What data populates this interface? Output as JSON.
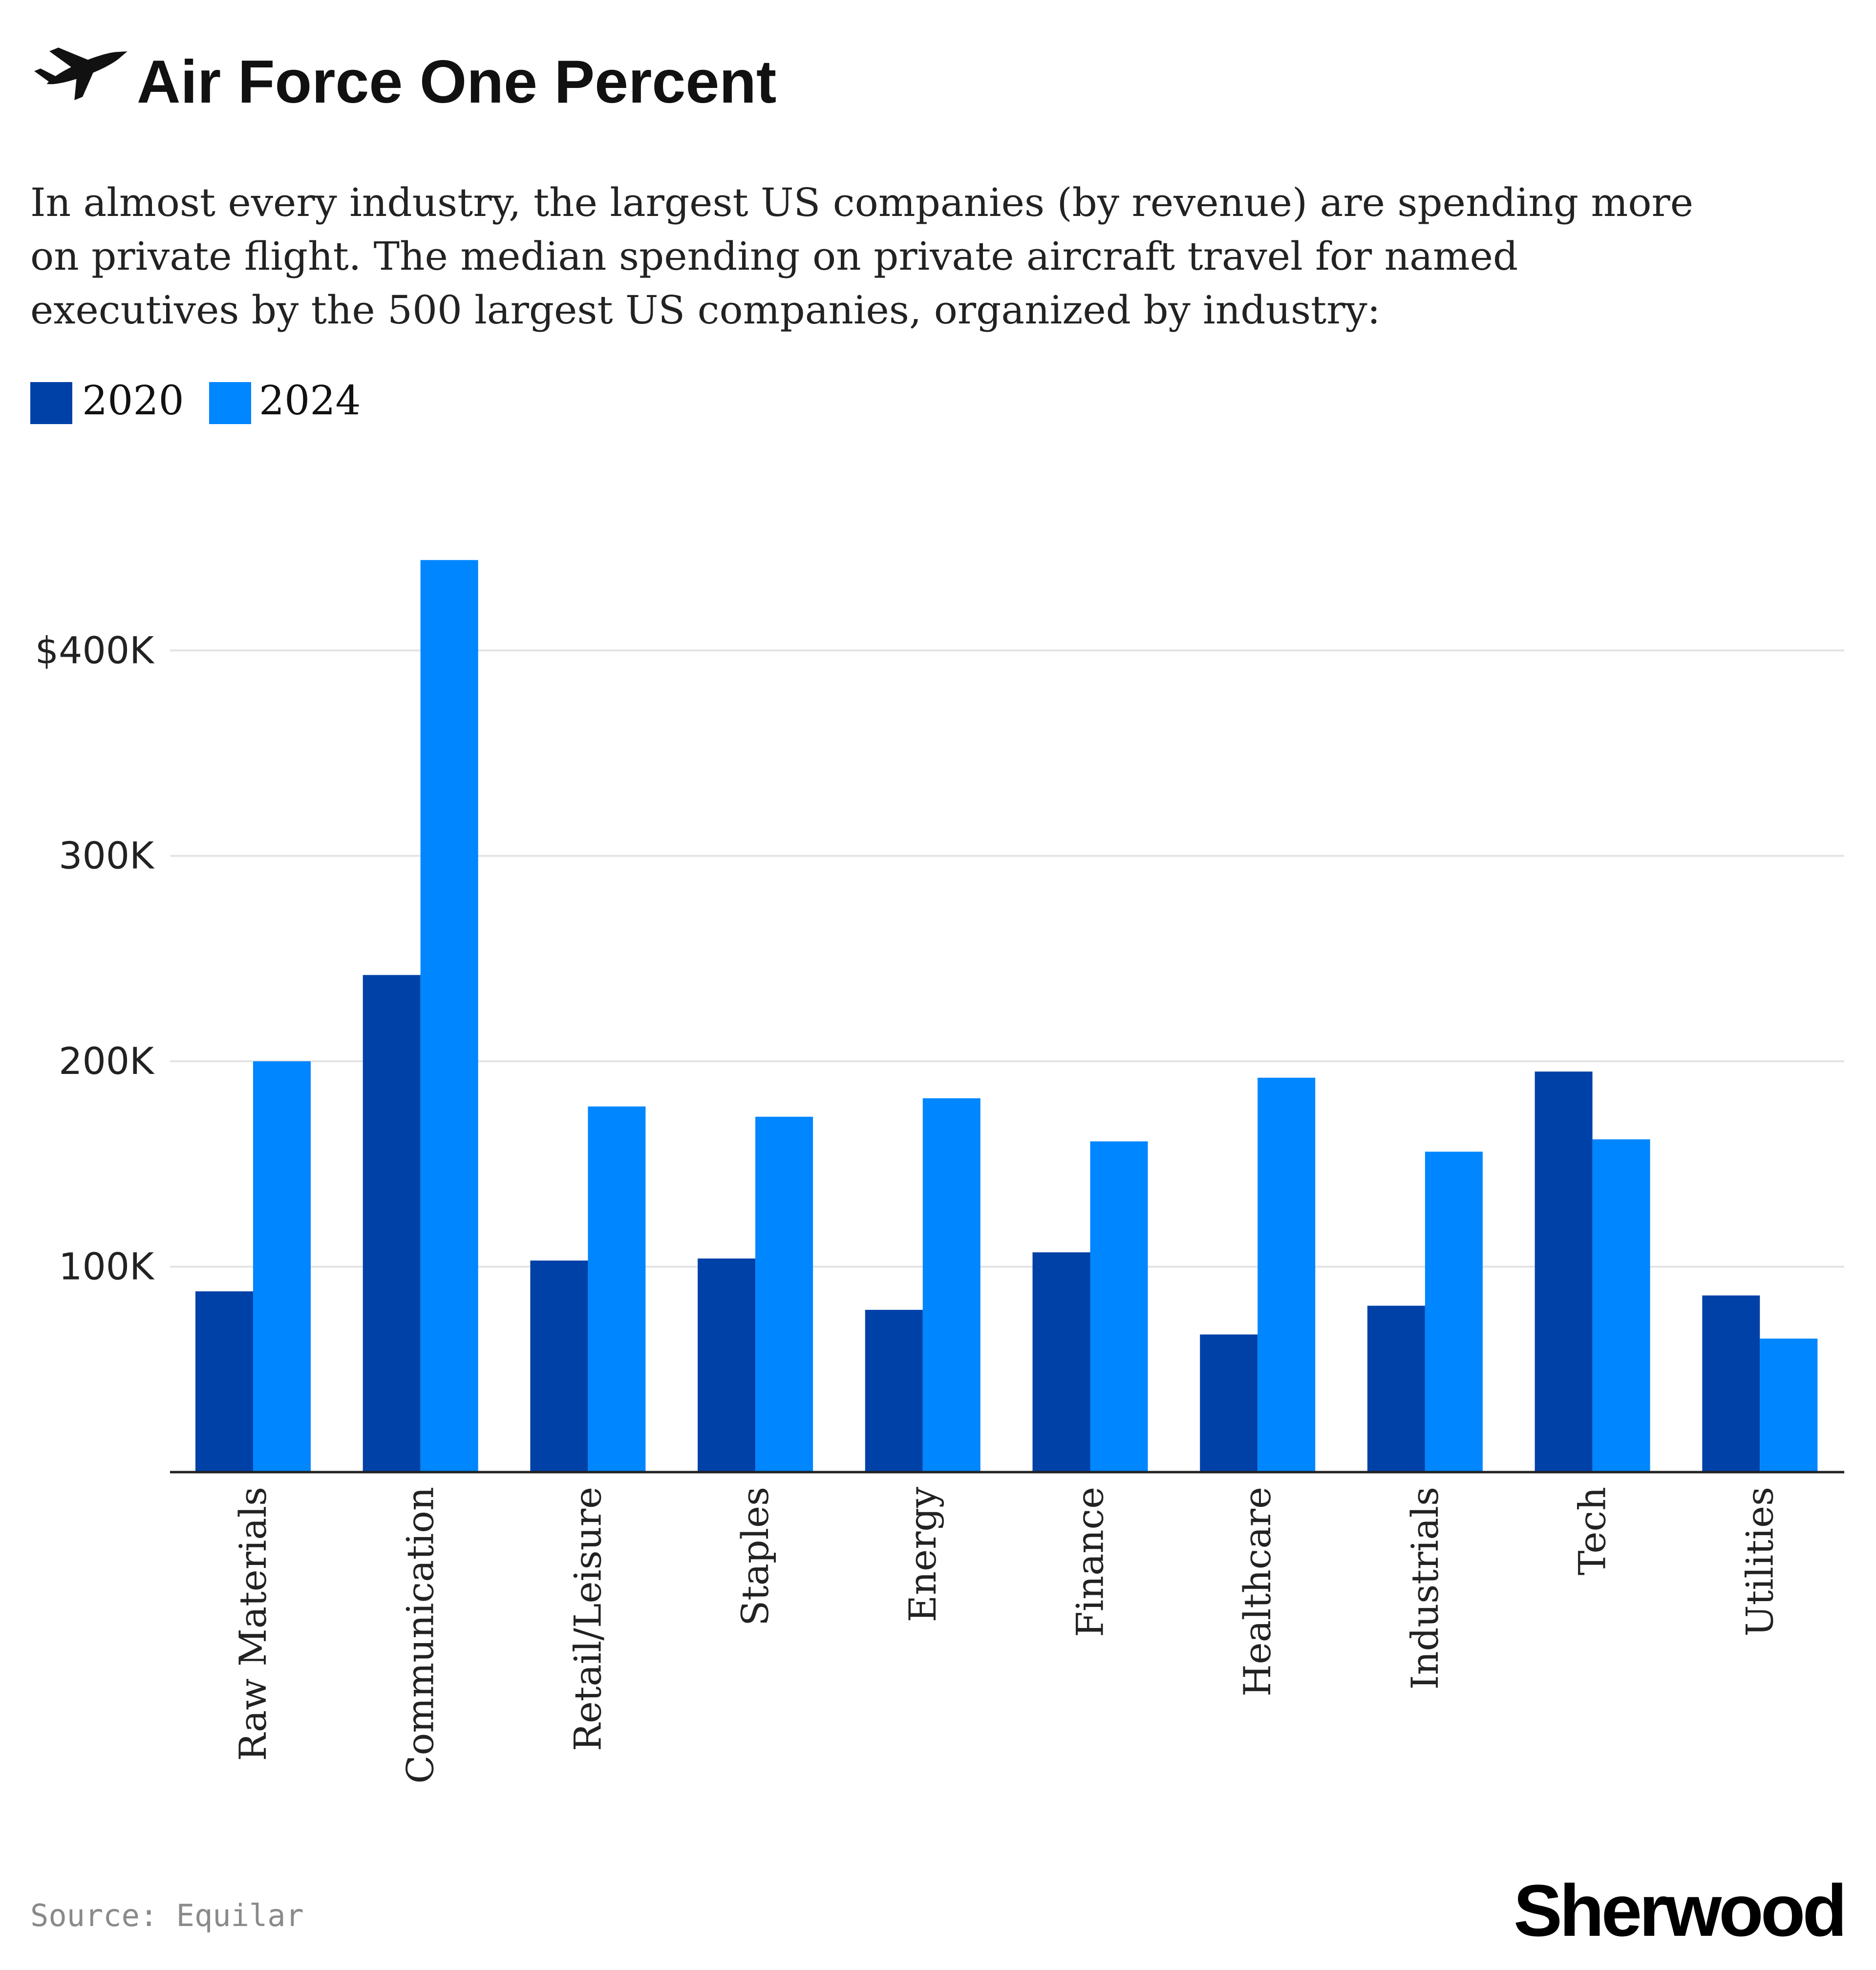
{
  "header": {
    "title": "Air Force One Percent",
    "icon": "airplane-icon",
    "subtitle_lines": [
      "In almost every industry, the largest US companies (by revenue) are spending more",
      "on private flight. The median spending on private aircraft travel for named",
      "executives by the 500 largest US companies, organized by industry:"
    ]
  },
  "footer": {
    "source": "Source: Equilar",
    "brand": "Sherwood"
  },
  "colors": {
    "series_2020": "#0041a8",
    "series_2024": "#0086ff"
  },
  "chart_data": {
    "type": "bar",
    "categories": [
      "Raw Materials",
      "Communication",
      "Retail/Leisure",
      "Staples",
      "Energy",
      "Finance",
      "Healthcare",
      "Industrials",
      "Tech",
      "Utilities"
    ],
    "series": [
      {
        "name": "2020",
        "values": [
          88000,
          242000,
          103000,
          104000,
          79000,
          107000,
          67000,
          81000,
          195000,
          86000
        ]
      },
      {
        "name": "2024",
        "values": [
          200000,
          444000,
          178000,
          173000,
          182000,
          161000,
          192000,
          156000,
          162000,
          65000
        ]
      }
    ],
    "yticks": [
      {
        "value": 100000,
        "label": "100K"
      },
      {
        "value": 200000,
        "label": "200K"
      },
      {
        "value": 300000,
        "label": "300K"
      },
      {
        "value": 400000,
        "label": "$400K"
      }
    ],
    "ylim": [
      0,
      460000
    ],
    "grid": true,
    "legend": "top-left",
    "title": "Air Force One Percent",
    "xlabel": "",
    "ylabel": ""
  }
}
